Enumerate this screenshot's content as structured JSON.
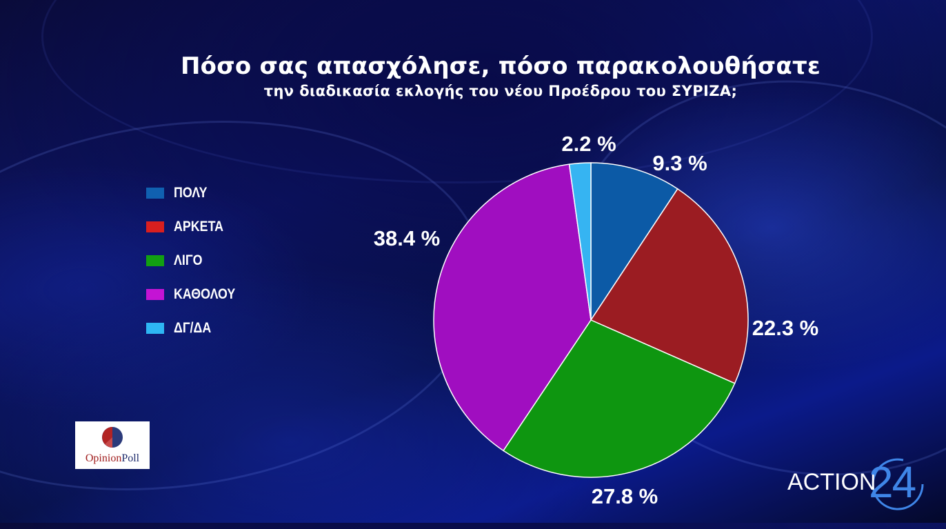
{
  "header": {
    "title": "Πόσο σας απασχόλησε, πόσο παρακολουθήσατε",
    "subtitle": "την διαδικασία εκλογής του νέου Προέδρου του ΣΥΡΙΖΑ;"
  },
  "chart_data": {
    "type": "pie",
    "title": "Πόσο σας απασχόλησε, πόσο παρακολουθήσατε",
    "subtitle": "την διαδικασία εκλογής του νέου Προέδρου του ΣΥΡΙΖΑ;",
    "categories": [
      "ΠΟΛΥ",
      "ΑΡΚΕΤΑ",
      "ΛΙΓΟ",
      "ΚΑΘΟΛΟΥ",
      "ΔΓ/ΔΑ"
    ],
    "values": [
      9.3,
      22.3,
      27.8,
      38.4,
      2.2
    ],
    "labels": [
      "9.3 %",
      "22.3 %",
      "27.8 %",
      "38.4 %",
      "2.2 %"
    ],
    "colors": [
      "#0c5aa6",
      "#9b1c22",
      "#0e9610",
      "#a00ec0",
      "#36b4f2"
    ],
    "legend_colors": [
      "#1060b0",
      "#d91f1f",
      "#12a012",
      "#c414d4",
      "#2eb6f4"
    ],
    "legend_position": "left"
  },
  "logos": {
    "opinionpoll": {
      "part1": "Opinion",
      "part2": "Poll"
    },
    "channel": {
      "word": "ACTION",
      "number": "24"
    }
  }
}
